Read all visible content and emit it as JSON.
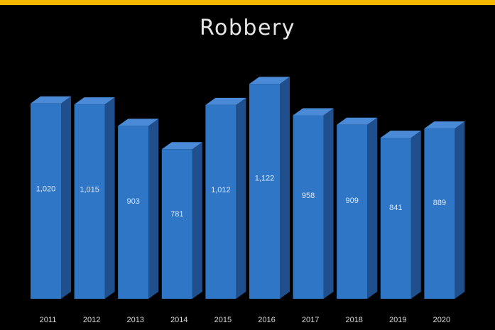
{
  "colors": {
    "top_bar": "#f5b800",
    "background": "#000000",
    "bar_front": "#2f77c6",
    "bar_side": "#1f4f8d",
    "bar_top": "#4a8ad6"
  },
  "chart_data": {
    "type": "bar",
    "title": "Robbery",
    "xlabel": "",
    "ylabel": "",
    "style": "3d-column",
    "grid": false,
    "legend": "none",
    "categories": [
      "2011",
      "2012",
      "2013",
      "2014",
      "2015",
      "2016",
      "2017",
      "2018",
      "2019",
      "2020"
    ],
    "value_labels": [
      "1,020",
      "1,015",
      "903",
      "781",
      "1,012",
      "1,122",
      "958",
      "909",
      "841",
      "889"
    ],
    "series": [
      {
        "values": [
          1020,
          1015,
          903,
          781,
          1012,
          1122,
          958,
          909,
          841,
          889
        ]
      }
    ],
    "ylim": [
      0,
      1160
    ]
  }
}
